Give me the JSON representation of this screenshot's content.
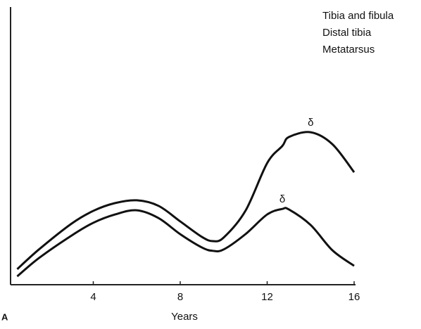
{
  "chart_data": {
    "type": "line",
    "panel_label": "A",
    "legend_lines": [
      "Tibia and fibula",
      "Distal tibia",
      "Metatarsus"
    ],
    "x_label": "Years",
    "x": [
      0.5,
      1.5,
      3,
      4,
      5,
      6,
      7,
      8,
      9,
      9.5,
      10,
      11,
      12,
      12.7,
      13,
      14,
      15,
      16
    ],
    "series": [
      {
        "color": "#111111",
        "values": [
          5.6,
          12.7,
          22,
          26.6,
          29.4,
          30.4,
          28.4,
          22.8,
          17.2,
          15.7,
          17,
          26.6,
          43.8,
          50,
          53.2,
          54.9,
          50.6,
          40.5
        ],
        "annotation": "δ"
      },
      {
        "color": "#111111",
        "values": [
          3,
          9.6,
          17.7,
          22.3,
          25.3,
          26.8,
          24,
          18.2,
          13.4,
          12.2,
          12.7,
          18.2,
          25.3,
          27.3,
          27.1,
          21.5,
          12.4,
          6.8
        ],
        "annotation": "δ"
      }
    ],
    "xlim": [
      0,
      16
    ],
    "xticks": [
      4,
      8,
      12,
      16
    ],
    "ylim": [
      0,
      100
    ]
  }
}
